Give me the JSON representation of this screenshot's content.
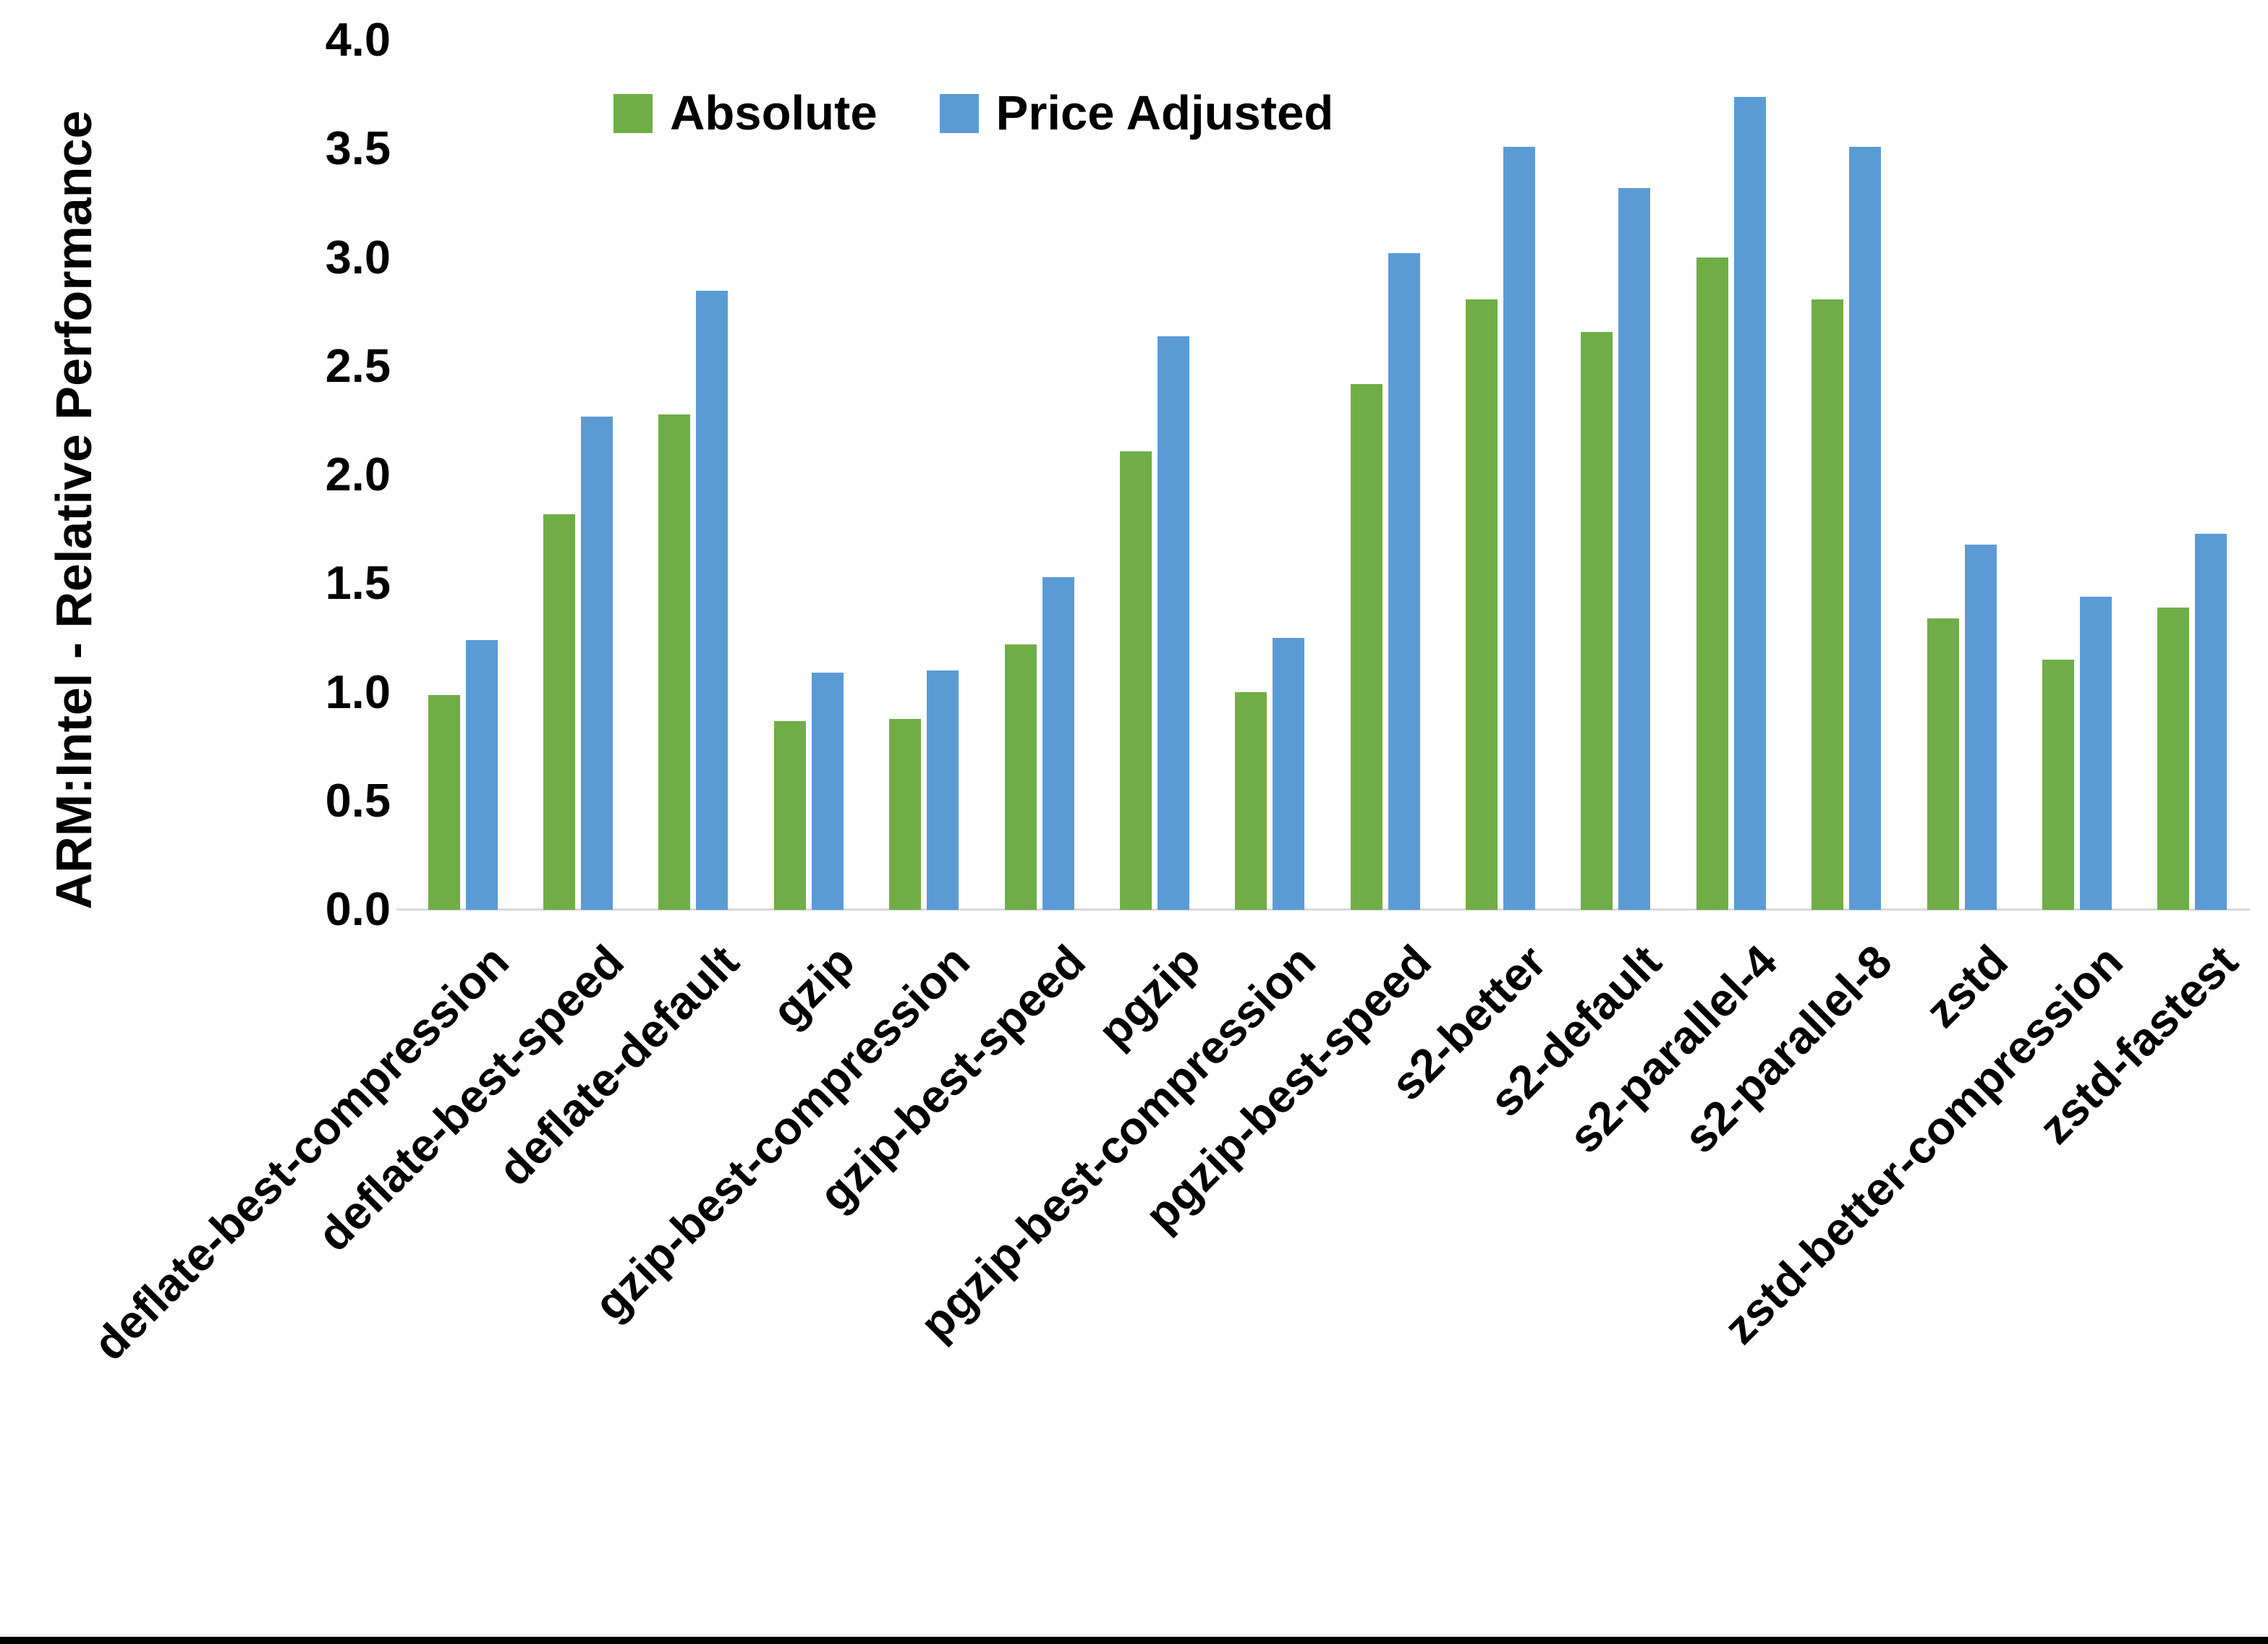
{
  "figure": {
    "background_color": "#ffffff",
    "bottom_border_color": "#000000"
  },
  "chart_data": {
    "type": "bar",
    "title": "",
    "xlabel": "",
    "ylabel": "ARM:Intel - Relative Performance",
    "ylim": [
      0.0,
      4.0
    ],
    "ytick_step": 0.5,
    "grid": false,
    "legend_position": "top",
    "axis_line_color": "#d9d9d9",
    "categories": [
      "deflate-best-compression",
      "deflate-best-speed",
      "deflate-default",
      "gzip",
      "gzip-best-compression",
      "gzip-best-speed",
      "pgzip",
      "pgzip-best-compression",
      "pgzip-best-speed",
      "s2-better",
      "s2-default",
      "s2-parallel-4",
      "s2-parallel-8",
      "zstd",
      "zstd-better-compression",
      "zstd-fastest"
    ],
    "series": [
      {
        "name": "Absolute",
        "color": "#70ad47",
        "values": [
          0.99,
          1.82,
          2.28,
          0.87,
          0.88,
          1.22,
          2.11,
          1.0,
          2.42,
          2.81,
          2.66,
          3.0,
          2.81,
          1.34,
          1.15,
          1.39
        ]
      },
      {
        "name": "Price Adjusted",
        "color": "#5b9bd5",
        "values": [
          1.24,
          2.27,
          2.85,
          1.09,
          1.1,
          1.53,
          2.64,
          1.25,
          3.02,
          3.51,
          3.32,
          3.74,
          3.51,
          1.68,
          1.44,
          1.73
        ]
      }
    ]
  }
}
